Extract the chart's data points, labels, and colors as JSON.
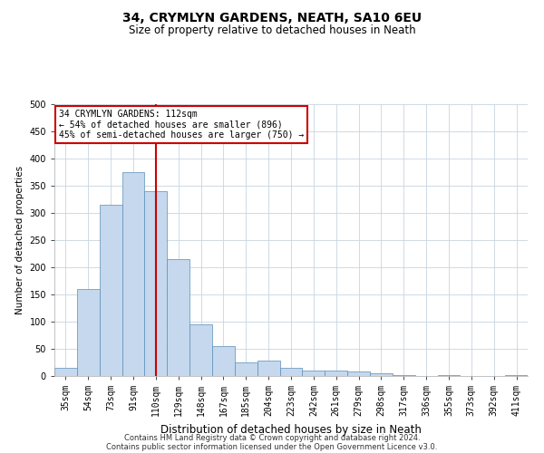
{
  "title1": "34, CRYMLYN GARDENS, NEATH, SA10 6EU",
  "title2": "Size of property relative to detached houses in Neath",
  "xlabel": "Distribution of detached houses by size in Neath",
  "ylabel": "Number of detached properties",
  "categories": [
    "35sqm",
    "54sqm",
    "73sqm",
    "91sqm",
    "110sqm",
    "129sqm",
    "148sqm",
    "167sqm",
    "185sqm",
    "204sqm",
    "223sqm",
    "242sqm",
    "261sqm",
    "279sqm",
    "298sqm",
    "317sqm",
    "336sqm",
    "355sqm",
    "373sqm",
    "392sqm",
    "411sqm"
  ],
  "values": [
    15,
    160,
    315,
    375,
    340,
    215,
    95,
    55,
    25,
    28,
    15,
    10,
    10,
    8,
    5,
    2,
    0,
    2,
    0,
    0,
    2
  ],
  "bar_color": "#c5d8ed",
  "bar_edge_color": "#5b8db8",
  "red_line_index": 4,
  "annotation_line1": "34 CRYMLYN GARDENS: 112sqm",
  "annotation_line2": "← 54% of detached houses are smaller (896)",
  "annotation_line3": "45% of semi-detached houses are larger (750) →",
  "annotation_box_color": "#ffffff",
  "annotation_box_edge": "#cc0000",
  "ylim": [
    0,
    500
  ],
  "yticks": [
    0,
    50,
    100,
    150,
    200,
    250,
    300,
    350,
    400,
    450,
    500
  ],
  "footer1": "Contains HM Land Registry data © Crown copyright and database right 2024.",
  "footer2": "Contains public sector information licensed under the Open Government Licence v3.0.",
  "background_color": "#ffffff",
  "grid_color": "#c8d4e0",
  "title1_fontsize": 10,
  "title2_fontsize": 8.5,
  "xlabel_fontsize": 8.5,
  "ylabel_fontsize": 7.5,
  "tick_fontsize": 7,
  "footer_fontsize": 6
}
